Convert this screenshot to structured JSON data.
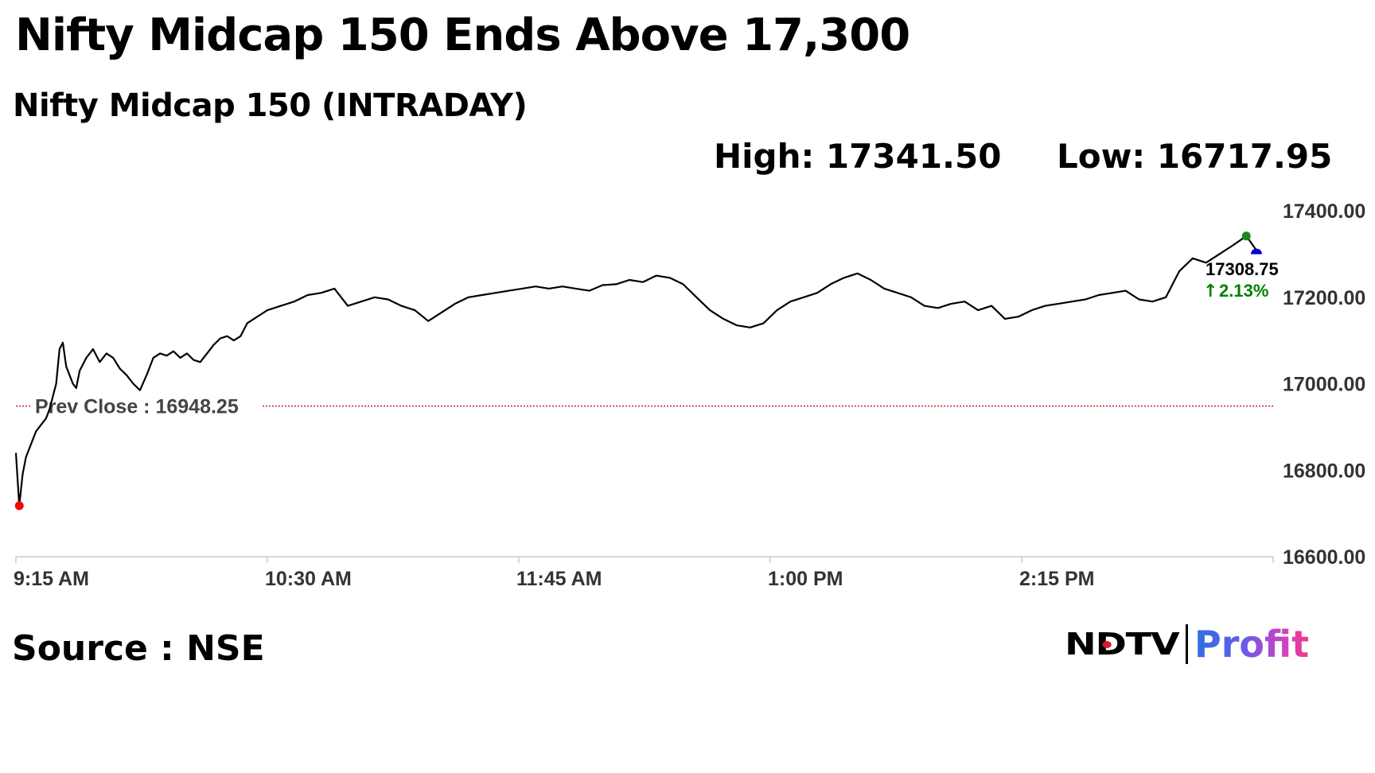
{
  "headline": "Nifty Midcap 150 Ends Above 17,300",
  "subtitle": "Nifty Midcap 150 (INTRADAY)",
  "stats": {
    "high": "High: 17341.50",
    "low": "Low: 16717.95"
  },
  "source": "Source : NSE",
  "logo": {
    "ndtv": "NDTV",
    "profit": "Profit"
  },
  "colors": {
    "line": "#000000",
    "prev_close_line": "#c00000",
    "up": "#008000",
    "low_marker": "#ff0000",
    "high_marker": "#1a8a1a",
    "last_marker": "#0000cc",
    "axis": "#cccccc",
    "logo_dot": "#e0182d"
  },
  "chart_data": {
    "type": "line",
    "title": "Nifty Midcap 150 (INTRADAY)",
    "ylim": [
      16600,
      17400
    ],
    "y_ticks": [
      17400,
      17200,
      17000,
      16800,
      16600
    ],
    "y_tick_labels": [
      "17400.00",
      "17200.00",
      "17000.00",
      "16800.00",
      "16600.00"
    ],
    "x_range": [
      "9:15",
      "15:30"
    ],
    "x_ticks": [
      "9:15",
      "10:30",
      "11:45",
      "13:00",
      "14:15"
    ],
    "x_tick_labels": [
      "9:15 AM",
      "10:30 AM",
      "11:45 AM",
      "1:00 PM",
      "2:15 PM"
    ],
    "prev_close": 16948.25,
    "prev_close_label": "Prev Close : 16948.25",
    "last_value_label": "17308.75",
    "change_label": "2.13%",
    "high_point": {
      "x": "15:22",
      "y": 17341.5
    },
    "low_point": {
      "x": "9:16",
      "y": 16717.95
    },
    "series": [
      {
        "x": [
          "9:15",
          "9:16",
          "9:17",
          "9:18",
          "9:21",
          "9:24",
          "9:25",
          "9:27",
          "9:28",
          "9:29",
          "9:30",
          "9:32",
          "9:33",
          "9:34",
          "9:36",
          "9:38",
          "9:40",
          "9:42",
          "9:44",
          "9:46",
          "9:48",
          "9:50",
          "9:52",
          "9:54",
          "9:56",
          "9:58",
          "10:00",
          "10:02",
          "10:04",
          "10:06",
          "10:08",
          "10:10",
          "10:12",
          "10:14",
          "10:16",
          "10:18",
          "10:20",
          "10:22",
          "10:24",
          "10:26",
          "10:28",
          "10:30",
          "10:34",
          "10:38",
          "10:42",
          "10:46",
          "10:50",
          "10:54",
          "10:58",
          "11:02",
          "11:06",
          "11:10",
          "11:14",
          "11:18",
          "11:22",
          "11:26",
          "11:30",
          "11:34",
          "11:38",
          "11:42",
          "11:46",
          "11:50",
          "11:54",
          "11:58",
          "12:02",
          "12:06",
          "12:10",
          "12:14",
          "12:18",
          "12:22",
          "12:26",
          "12:30",
          "12:34",
          "12:38",
          "12:42",
          "12:46",
          "12:50",
          "12:54",
          "12:58",
          "13:02",
          "13:06",
          "13:10",
          "13:14",
          "13:18",
          "13:22",
          "13:26",
          "13:30",
          "13:34",
          "13:38",
          "13:42",
          "13:46",
          "13:50",
          "13:54",
          "13:58",
          "14:02",
          "14:06",
          "14:10",
          "14:14",
          "14:18",
          "14:22",
          "14:26",
          "14:30",
          "14:34",
          "14:38",
          "14:42",
          "14:46",
          "14:50",
          "14:54",
          "14:58",
          "15:02",
          "15:06",
          "15:10",
          "15:14",
          "15:18",
          "15:22",
          "15:25"
        ],
        "y": [
          16840,
          16717.95,
          16790,
          16830,
          16890,
          16920,
          16940,
          17000,
          17080,
          17095,
          17040,
          17000,
          16990,
          17030,
          17060,
          17080,
          17050,
          17070,
          17060,
          17035,
          17020,
          17000,
          16985,
          17020,
          17060,
          17070,
          17065,
          17075,
          17060,
          17070,
          17055,
          17050,
          17070,
          17090,
          17105,
          17110,
          17100,
          17110,
          17140,
          17150,
          17160,
          17170,
          17180,
          17190,
          17205,
          17210,
          17220,
          17180,
          17190,
          17200,
          17195,
          17180,
          17170,
          17145,
          17165,
          17185,
          17200,
          17205,
          17210,
          17215,
          17220,
          17225,
          17220,
          17225,
          17220,
          17215,
          17228,
          17230,
          17240,
          17235,
          17250,
          17245,
          17230,
          17200,
          17170,
          17150,
          17135,
          17130,
          17140,
          17170,
          17190,
          17200,
          17210,
          17230,
          17245,
          17255,
          17240,
          17220,
          17210,
          17200,
          17180,
          17175,
          17185,
          17190,
          17170,
          17180,
          17150,
          17155,
          17170,
          17180,
          17185,
          17190,
          17195,
          17205,
          17210,
          17215,
          17195,
          17190,
          17200,
          17260,
          17290,
          17280,
          17300,
          17320,
          17341.5,
          17308.75
        ]
      }
    ]
  }
}
